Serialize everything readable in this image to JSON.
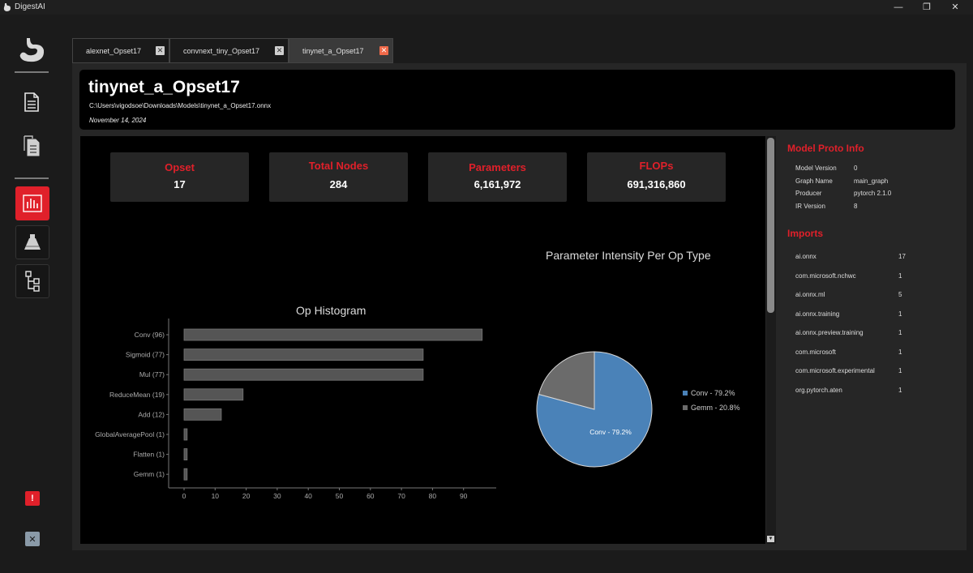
{
  "app": {
    "title": "DigestAI",
    "colors": {
      "accent": "#e0202a",
      "bar": "#555555",
      "conv": "#4a82b8",
      "gemm": "#6b6b6b"
    }
  },
  "window_controls": {
    "minimize": "—",
    "restore": "❐",
    "close": "✕"
  },
  "sidebar": {
    "icons": [
      "stomach-logo-icon",
      "document-icon",
      "documents-icon",
      "histogram-icon",
      "flask-icon",
      "node-tree-icon"
    ],
    "warning_glyph": "!",
    "close_glyph": "✕"
  },
  "tabs": [
    {
      "label": "alexnet_Opset17",
      "close": "✕"
    },
    {
      "label": "convnext_tiny_Opset17",
      "close": "✕"
    },
    {
      "label": "tinynet_a_Opset17",
      "close": "✕"
    }
  ],
  "header": {
    "title": "tinynet_a_Opset17",
    "path": "C:\\Users\\vigodsoe\\Downloads\\Models\\tinynet_a_Opset17.onnx",
    "date": "November 14, 2024"
  },
  "cards": [
    {
      "label": "Opset",
      "value": "17"
    },
    {
      "label": "Total Nodes",
      "value": "284"
    },
    {
      "label": "Parameters",
      "value": "6,161,972"
    },
    {
      "label": "FLOPs",
      "value": "691,316,860"
    }
  ],
  "chart_data": [
    {
      "type": "bar",
      "orientation": "horizontal",
      "title": "Op Histogram",
      "categories": [
        "Conv (96)",
        "Sigmoid (77)",
        "Mul (77)",
        "ReduceMean (19)",
        "Add (12)",
        "GlobalAveragePool (1)",
        "Flatten (1)",
        "Gemm (1)"
      ],
      "values": [
        96,
        77,
        77,
        19,
        12,
        1,
        1,
        1
      ],
      "xlim": [
        0,
        100
      ],
      "xticks": [
        "0",
        "10",
        "20",
        "30",
        "40",
        "50",
        "60",
        "70",
        "80",
        "90"
      ],
      "grid": false
    },
    {
      "type": "pie",
      "title": "Parameter Intensity Per Op Type",
      "slices": [
        {
          "label": "Conv - 79.2%",
          "value": 79.2,
          "color": "#4a82b8"
        },
        {
          "label": "Gemm - 20.8%",
          "value": 20.8,
          "color": "#6b6b6b"
        }
      ],
      "inner_label": "Conv - 79.2%",
      "legend": "right"
    }
  ],
  "proto_info": {
    "title": "Model Proto Info",
    "rows": [
      {
        "key": "Model Version",
        "value": "0"
      },
      {
        "key": "Graph Name",
        "value": "main_graph"
      },
      {
        "key": "Producer",
        "value": "pytorch 2.1.0"
      },
      {
        "key": "IR Version",
        "value": "8"
      }
    ]
  },
  "imports": {
    "title": "Imports",
    "rows": [
      {
        "key": "ai.onnx",
        "value": "17"
      },
      {
        "key": "com.microsoft.nchwc",
        "value": "1"
      },
      {
        "key": "ai.onnx.ml",
        "value": "5"
      },
      {
        "key": "ai.onnx.training",
        "value": "1"
      },
      {
        "key": "ai.onnx.preview.training",
        "value": "1"
      },
      {
        "key": "com.microsoft",
        "value": "1"
      },
      {
        "key": "com.microsoft.experimental",
        "value": "1"
      },
      {
        "key": "org.pytorch.aten",
        "value": "1"
      }
    ]
  },
  "scroll": {
    "down_glyph": "▼"
  }
}
